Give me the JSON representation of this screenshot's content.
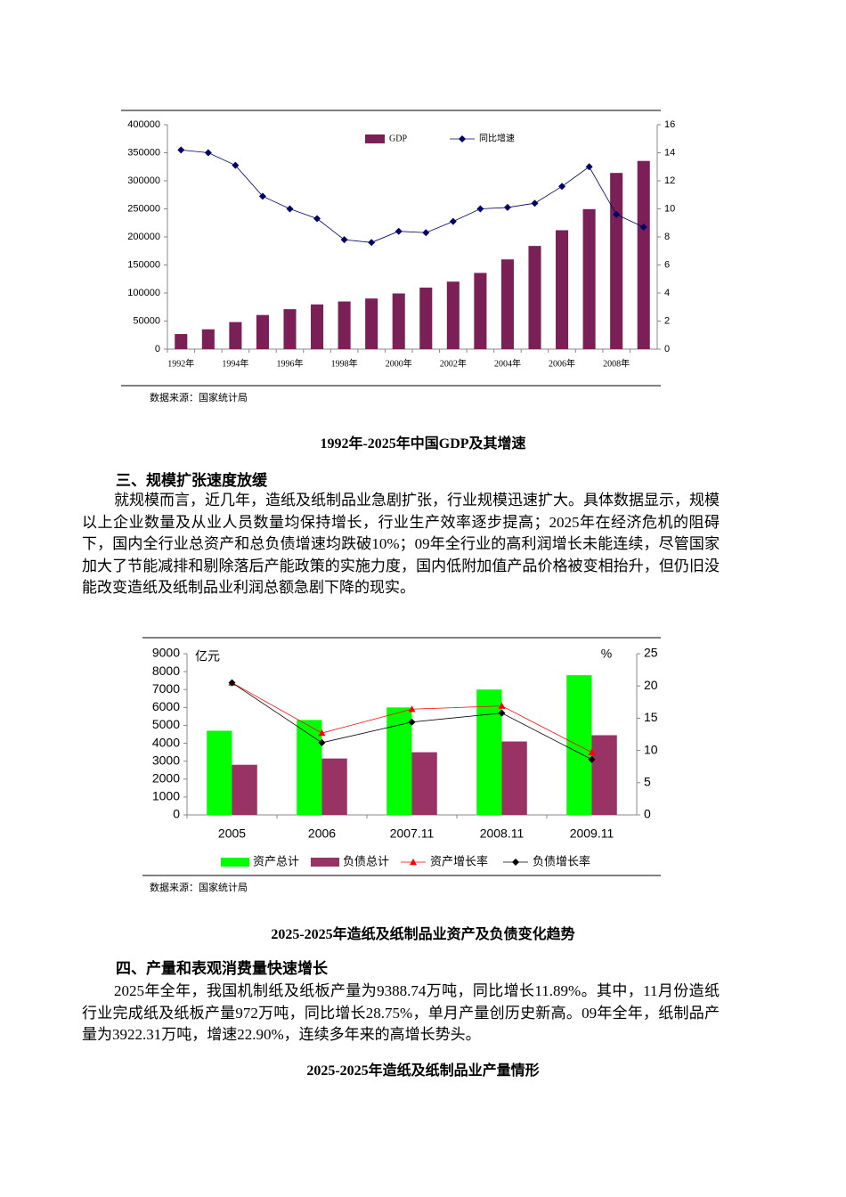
{
  "chart_data": [
    {
      "type": "bar",
      "categories": [
        "1992年",
        null,
        "1994年",
        null,
        "1996年",
        null,
        "1998年",
        null,
        "2000年",
        null,
        "2002年",
        null,
        "2004年",
        null,
        "2006年",
        null,
        "2008年",
        null
      ],
      "series": [
        {
          "name": "GDP",
          "type": "bar",
          "color": "#7b1f57",
          "values": [
            26900,
            35300,
            48200,
            60800,
            71200,
            79700,
            84900,
            90200,
            99200,
            109700,
            120300,
            135800,
            159900,
            183900,
            211900,
            249500,
            314000,
            335400
          ]
        },
        {
          "name": "同比增速",
          "type": "line",
          "axis": "y2",
          "marker": "diamond",
          "color": "#000066",
          "values": [
            14.2,
            14.0,
            13.1,
            10.9,
            10.0,
            9.3,
            7.8,
            7.6,
            8.4,
            8.3,
            9.1,
            10.0,
            10.1,
            10.4,
            11.6,
            13.0,
            9.6,
            8.7
          ]
        }
      ],
      "ylim": [
        0,
        400000
      ],
      "yticks": [
        0,
        50000,
        100000,
        150000,
        200000,
        250000,
        300000,
        350000,
        400000
      ],
      "y2lim": [
        0,
        16
      ],
      "y2ticks": [
        0,
        2,
        4,
        6,
        8,
        10,
        12,
        14,
        16
      ],
      "legend": "top",
      "note": "数据来源：国家统计局"
    },
    {
      "type": "bar",
      "categories": [
        "2005",
        "2006",
        "2007.11",
        "2008.11",
        "2009.11"
      ],
      "series": [
        {
          "name": "资产总计",
          "type": "bar",
          "color": "#00ff00",
          "values": [
            4700,
            5300,
            6000,
            7000,
            7800
          ]
        },
        {
          "name": "负债总计",
          "type": "bar",
          "color": "#993366",
          "values": [
            2800,
            3150,
            3500,
            4100,
            4450
          ]
        },
        {
          "name": "资产增长率",
          "type": "line",
          "axis": "y2",
          "marker": "triangle",
          "color": "#ff0000",
          "values": [
            20.5,
            12.7,
            16.4,
            16.9,
            9.7
          ]
        },
        {
          "name": "负债增长率",
          "type": "line",
          "axis": "y2",
          "marker": "diamond",
          "color": "#000000",
          "values": [
            20.5,
            11.2,
            14.4,
            15.8,
            8.6
          ]
        }
      ],
      "y_label": "亿元",
      "y2_label": "%",
      "ylim": [
        0,
        9000
      ],
      "yticks": [
        0,
        1000,
        2000,
        3000,
        4000,
        5000,
        6000,
        7000,
        8000,
        9000
      ],
      "y2lim": [
        0,
        25
      ],
      "y2ticks": [
        0,
        5,
        10,
        15,
        20,
        25
      ],
      "legend": "bottom",
      "note": "数据来源：国家统计局"
    }
  ],
  "document": {
    "caption_1": "1992年-2025年中国GDP及其增速",
    "heading_3": "三、规模扩张速度放缓",
    "paragraph_3": "就规模而言，近几年，造纸及纸制品业急剧扩张，行业规模迅速扩大。具体数据显示，规模以上企业数量及从业人员数量均保持增长，行业生产效率逐步提高；2025年在经济危机的阻碍下，国内全行业总资产和总负债增速均跌破10%；09年全行业的高利润增长未能连续，尽管国家加大了节能减排和剔除落后产能政策的实施力度，国内低附加值产品价格被变相抬升，但仍旧没能改变造纸及纸制品业利润总额急剧下降的现实。",
    "caption_2": "2025-2025年造纸及纸制品业资产及负债变化趋势",
    "heading_4": "四、产量和表观消费量快速增长",
    "paragraph_4": "2025年全年，我国机制纸及纸板产量为9388.74万吨，同比增长11.89%。其中，11月份造纸行业完成纸及纸板产量972万吨，同比增长28.75%，单月产量创历史新高。09年全年，纸制品产量为3922.31万吨，增速22.90%，连续多年来的高增长势头。",
    "caption_3": "2025-2025年造纸及纸制品业产量情形"
  }
}
